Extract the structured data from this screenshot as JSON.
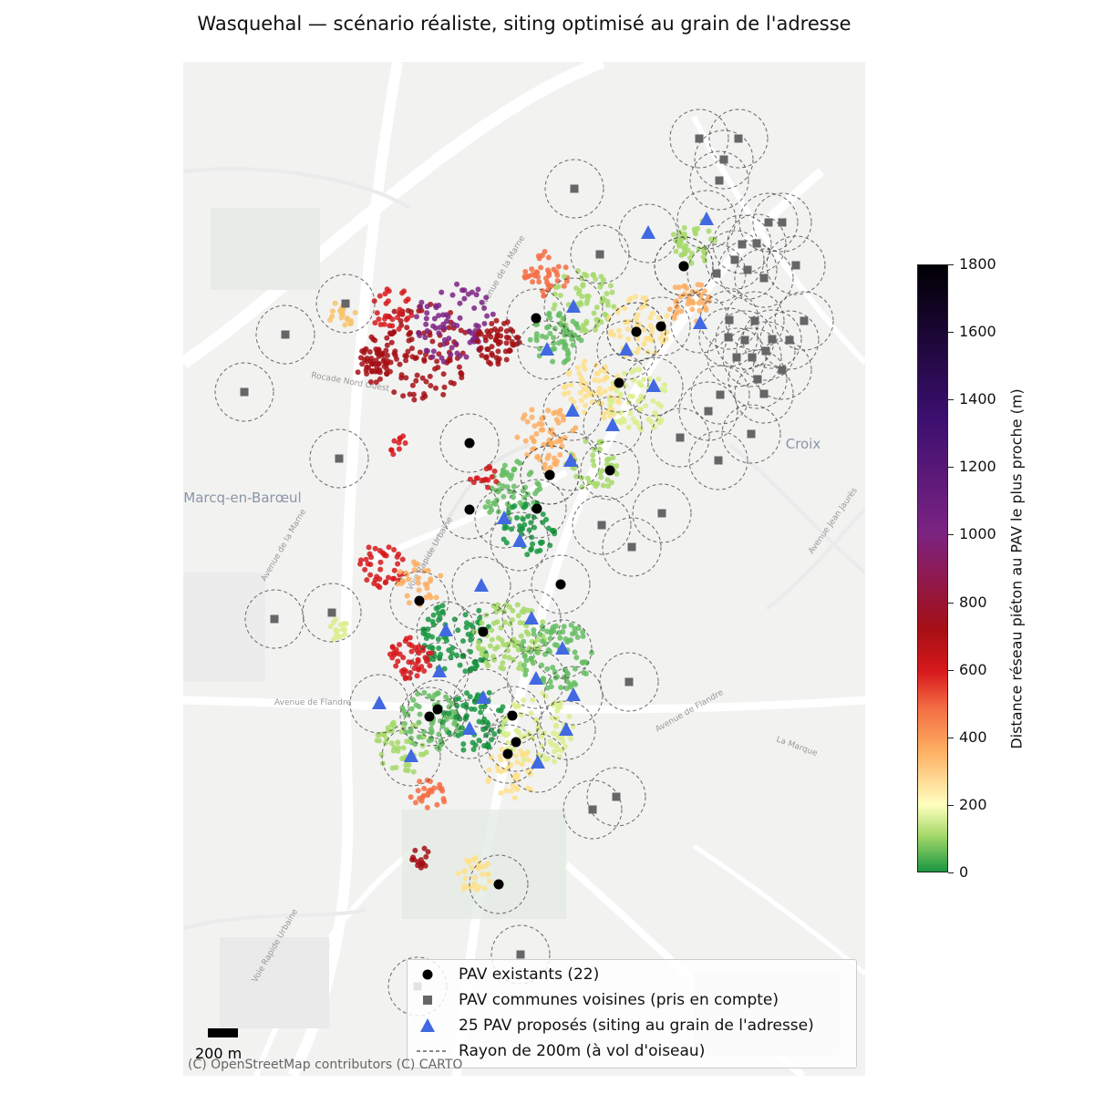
{
  "title": "Wasquehal — scénario réaliste, siting optimisé au grain de l'adresse",
  "basemap": {
    "place_labels": [
      "Marcq-en-Barœul",
      "Croix"
    ],
    "road_labels": [
      "Rocade Nord Ouest",
      "Avenue de Flandre",
      "Avenue de Flandre",
      "Voie Rapide Urbaine",
      "Voie Rapide Urbaine",
      "Avenue de la Marne",
      "Avenue de la Marne",
      "La Marque",
      "Avenue Jean Jaurès"
    ],
    "attribution": "(C) OpenStreetMap contributors (C) CARTO"
  },
  "legend": {
    "existing": "PAV existants (22)",
    "neighbors": "PAV communes voisines (pris en compte)",
    "proposed": "25 PAV proposés (siting au grain de l'adresse)",
    "radius": "Rayon de 200m (à vol d'oiseau)"
  },
  "colorbar": {
    "label": "Distance réseau piéton au PAV le plus proche (m)",
    "ticks": [
      "0",
      "200",
      "400",
      "600",
      "800",
      "1000",
      "1200",
      "1400",
      "1600",
      "1800"
    ],
    "min": 0,
    "max": 1800,
    "colors": [
      "#1a9641",
      "#a6d96a",
      "#ffffbf",
      "#fdae61",
      "#d7191c",
      "#7b2382",
      "#000004"
    ]
  },
  "scale_bar": {
    "label": "200 m"
  },
  "colors": {
    "existing": "#000000",
    "neighbors": "#666666",
    "proposed": "#4169e1",
    "radius": "#444444"
  }
}
